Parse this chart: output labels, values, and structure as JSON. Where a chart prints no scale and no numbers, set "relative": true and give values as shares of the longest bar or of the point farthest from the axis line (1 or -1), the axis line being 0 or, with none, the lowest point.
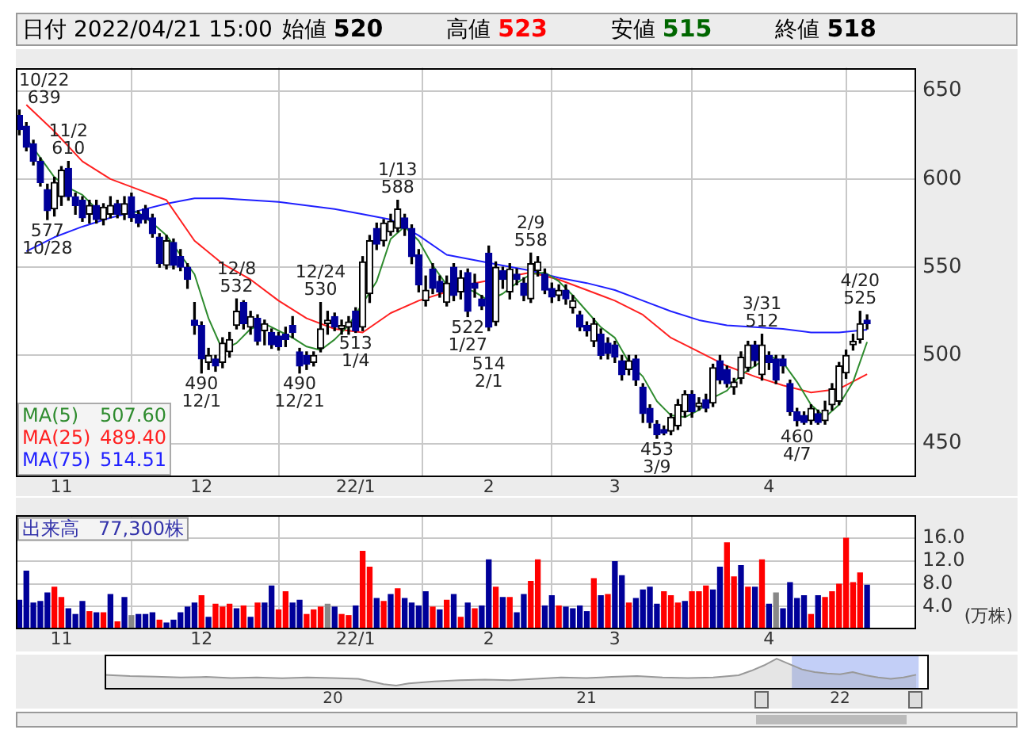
{
  "chart_data": [
    {
      "type": "candlestick",
      "title": "日付 2022/04/21 15:00",
      "categories": [
        null,
        null,
        null,
        null,
        null,
        null,
        "11",
        null,
        null,
        null,
        null,
        null,
        null,
        null,
        null,
        null,
        null,
        null,
        null,
        null,
        null,
        null,
        null,
        null,
        null,
        null,
        "12",
        null,
        null,
        null,
        null,
        null,
        null,
        null,
        null,
        null,
        null,
        null,
        null,
        null,
        null,
        null,
        null,
        null,
        null,
        null,
        null,
        null,
        "22/1",
        null,
        null,
        null,
        null,
        null,
        null,
        null,
        null,
        null,
        null,
        null,
        null,
        null,
        null,
        null,
        null,
        null,
        null,
        "2",
        null,
        null,
        null,
        null,
        null,
        null,
        null,
        null,
        null,
        null,
        null,
        null,
        null,
        null,
        null,
        null,
        null,
        "3",
        null,
        null,
        null,
        null,
        null,
        null,
        null,
        null,
        null,
        null,
        null,
        null,
        null,
        null,
        null,
        null,
        null,
        null,
        null,
        null,
        null,
        "4",
        null,
        null,
        null,
        null,
        null,
        null,
        null,
        null,
        null,
        null,
        null,
        null,
        null,
        null
      ],
      "ohlc": [
        [
          636,
          639,
          625,
          628
        ],
        [
          630,
          632,
          616,
          618
        ],
        [
          620,
          622,
          608,
          610
        ],
        [
          610,
          612,
          596,
          598
        ],
        [
          594,
          597,
          577,
          582
        ],
        [
          583,
          601,
          579,
          598
        ],
        [
          590,
          607,
          585,
          605
        ],
        [
          606,
          610,
          588,
          590
        ],
        [
          590,
          592,
          580,
          585
        ],
        [
          588,
          590,
          576,
          578
        ],
        [
          580,
          588,
          575,
          585
        ],
        [
          585,
          588,
          575,
          577
        ],
        [
          577,
          586,
          574,
          584
        ],
        [
          580,
          590,
          578,
          585
        ],
        [
          586,
          588,
          578,
          580
        ],
        [
          580,
          590,
          577,
          586
        ],
        [
          590,
          592,
          576,
          578
        ],
        [
          580,
          582,
          573,
          575
        ],
        [
          583,
          585,
          575,
          577
        ],
        [
          578,
          580,
          567,
          569
        ],
        [
          567,
          569,
          550,
          552
        ],
        [
          551,
          568,
          549,
          565
        ],
        [
          564,
          566,
          549,
          551
        ],
        [
          556,
          560,
          548,
          550
        ],
        [
          550,
          552,
          538,
          543
        ],
        [
          520,
          530,
          512,
          517
        ],
        [
          517,
          519,
          490,
          498
        ],
        [
          496,
          504,
          492,
          500
        ],
        [
          498,
          500,
          491,
          494
        ],
        [
          496,
          510,
          493,
          507
        ],
        [
          502,
          513,
          499,
          509
        ],
        [
          517,
          532,
          515,
          525
        ],
        [
          530,
          531,
          515,
          518
        ],
        [
          516,
          525,
          512,
          522
        ],
        [
          521,
          523,
          506,
          508
        ],
        [
          514,
          520,
          506,
          518
        ],
        [
          513,
          515,
          504,
          506
        ],
        [
          511,
          513,
          503,
          505
        ],
        [
          512,
          516,
          505,
          509
        ],
        [
          517,
          522,
          510,
          513
        ],
        [
          502,
          504,
          490,
          494
        ],
        [
          500,
          502,
          492,
          495
        ],
        [
          496,
          502,
          494,
          500
        ],
        [
          504,
          530,
          502,
          515
        ],
        [
          518,
          525,
          512,
          520
        ],
        [
          522,
          524,
          514,
          516
        ],
        [
          515,
          520,
          512,
          517
        ],
        [
          516,
          522,
          512,
          519
        ],
        [
          525,
          527,
          513,
          514
        ],
        [
          516,
          556,
          514,
          553
        ],
        [
          535,
          568,
          530,
          565
        ],
        [
          572,
          575,
          560,
          563
        ],
        [
          565,
          577,
          562,
          575
        ],
        [
          570,
          580,
          568,
          576
        ],
        [
          572,
          588,
          570,
          583
        ],
        [
          578,
          580,
          568,
          572
        ],
        [
          572,
          574,
          552,
          556
        ],
        [
          557,
          560,
          536,
          540
        ],
        [
          531,
          545,
          528,
          537
        ],
        [
          549,
          552,
          535,
          538
        ],
        [
          542,
          545,
          533,
          536
        ],
        [
          530,
          545,
          528,
          541
        ],
        [
          550,
          552,
          531,
          534
        ],
        [
          536,
          548,
          532,
          544
        ],
        [
          547,
          549,
          522,
          525
        ],
        [
          541,
          546,
          533,
          538
        ],
        [
          532,
          534,
          526,
          528
        ],
        [
          558,
          562,
          514,
          516
        ],
        [
          519,
          553,
          517,
          550
        ],
        [
          548,
          550,
          538,
          543
        ],
        [
          536,
          552,
          532,
          549
        ],
        [
          546,
          549,
          540,
          543
        ],
        [
          541,
          544,
          531,
          534
        ],
        [
          532,
          558,
          530,
          552
        ],
        [
          548,
          556,
          545,
          553
        ],
        [
          546,
          549,
          535,
          537
        ],
        [
          538,
          541,
          530,
          533
        ],
        [
          534,
          540,
          531,
          537
        ],
        [
          537,
          540,
          529,
          532
        ],
        [
          527,
          534,
          524,
          531
        ],
        [
          523,
          525,
          514,
          516
        ],
        [
          517,
          519,
          511,
          514
        ],
        [
          508,
          521,
          505,
          518
        ],
        [
          512,
          515,
          498,
          500
        ],
        [
          507,
          510,
          498,
          501
        ],
        [
          506,
          508,
          496,
          499
        ],
        [
          497,
          500,
          486,
          489
        ],
        [
          492,
          500,
          489,
          497
        ],
        [
          498,
          500,
          483,
          486
        ],
        [
          482,
          484,
          462,
          467
        ],
        [
          470,
          472,
          459,
          462
        ],
        [
          461,
          463,
          453,
          455
        ],
        [
          458,
          460,
          455,
          456
        ],
        [
          457,
          467,
          455,
          465
        ],
        [
          460,
          475,
          458,
          472
        ],
        [
          468,
          480,
          465,
          478
        ],
        [
          478,
          480,
          465,
          468
        ],
        [
          471,
          476,
          469,
          473
        ],
        [
          475,
          478,
          468,
          470
        ],
        [
          473,
          495,
          471,
          493
        ],
        [
          497,
          500,
          484,
          486
        ],
        [
          492,
          494,
          482,
          484
        ],
        [
          482,
          487,
          478,
          485
        ],
        [
          487,
          502,
          484,
          499
        ],
        [
          493,
          508,
          491,
          506
        ],
        [
          506,
          508,
          494,
          497
        ],
        [
          489,
          512,
          486,
          506
        ],
        [
          500,
          502,
          492,
          496
        ],
        [
          498,
          500,
          484,
          486
        ],
        [
          498,
          500,
          490,
          494
        ],
        [
          484,
          486,
          466,
          468
        ],
        [
          468,
          470,
          460,
          463
        ],
        [
          466,
          468,
          461,
          462
        ],
        [
          463,
          472,
          461,
          470
        ],
        [
          467,
          469,
          461,
          462
        ],
        [
          463,
          474,
          461,
          469
        ],
        [
          472,
          484,
          469,
          481
        ],
        [
          474,
          496,
          472,
          494
        ],
        [
          490,
          503,
          487,
          500
        ],
        [
          506,
          512,
          503,
          508
        ],
        [
          509,
          525,
          507,
          518
        ],
        [
          520,
          523,
          515,
          518
        ]
      ],
      "series": [
        {
          "name": "MA(5)",
          "type": "line",
          "color": "#2e8b2e",
          "values": [
            null,
            623,
            null,
            612,
            null,
            601,
            null,
            595,
            null,
            591,
            null,
            583,
            null,
            582,
            null,
            582,
            null,
            581,
            null,
            575,
            null,
            568,
            null,
            557,
            null,
            546,
            null,
            521,
            null,
            503,
            null,
            507,
            null,
            515,
            null,
            518,
            null,
            514,
            null,
            510,
            null,
            505,
            null,
            503,
            null,
            509,
            null,
            517,
            null,
            null,
            null,
            542,
            null,
            566,
            null,
            573,
            null,
            565,
            null,
            551,
            null,
            540,
            null,
            539,
            null,
            536,
            null,
            531,
            null,
            535,
            null,
            541,
            null,
            546,
            null,
            547,
            null,
            542,
            null,
            534,
            null,
            525,
            null,
            516,
            null,
            510,
            null,
            496,
            null,
            488,
            null,
            474,
            null,
            466,
            null,
            465,
            null,
            469,
            null,
            476,
            null,
            480,
            null,
            489,
            null,
            494,
            null,
            500,
            null,
            496,
            null,
            485,
            null,
            472,
            null,
            465,
            null,
            472,
            null,
            485,
            null,
            507.6
          ]
        },
        {
          "name": "MA(25)",
          "type": "line",
          "color": "#ff2020",
          "values": [
            null,
            642,
            null,
            null,
            null,
            627,
            null,
            null,
            null,
            610,
            null,
            null,
            null,
            600,
            null,
            null,
            null,
            594,
            null,
            null,
            null,
            588,
            null,
            null,
            null,
            565,
            null,
            null,
            null,
            552,
            null,
            null,
            null,
            543,
            null,
            null,
            null,
            531,
            null,
            null,
            null,
            521,
            null,
            null,
            null,
            515,
            null,
            null,
            null,
            513,
            null,
            null,
            null,
            524,
            null,
            null,
            null,
            531,
            null,
            null,
            null,
            536,
            null,
            null,
            null,
            541,
            null,
            null,
            null,
            null,
            null,
            null,
            null,
            547,
            null,
            null,
            null,
            543,
            null,
            null,
            null,
            537,
            null,
            null,
            null,
            531,
            null,
            null,
            null,
            523,
            null,
            null,
            null,
            510,
            null,
            null,
            null,
            502,
            null,
            null,
            null,
            494,
            null,
            null,
            null,
            488,
            null,
            null,
            null,
            483,
            null,
            null,
            null,
            479,
            null,
            null,
            null,
            481,
            null,
            null,
            null,
            489.4
          ]
        },
        {
          "name": "MA(75)",
          "type": "line",
          "color": "#2020ff",
          "values": [
            null,
            559,
            null,
            null,
            null,
            567,
            null,
            null,
            null,
            573,
            null,
            null,
            null,
            578,
            null,
            null,
            null,
            582,
            null,
            null,
            null,
            586,
            null,
            null,
            null,
            589,
            null,
            null,
            null,
            589,
            null,
            null,
            null,
            588,
            null,
            null,
            null,
            587,
            null,
            null,
            null,
            585,
            null,
            null,
            null,
            583,
            null,
            null,
            null,
            580,
            null,
            null,
            null,
            577,
            null,
            null,
            null,
            568,
            null,
            null,
            null,
            557,
            null,
            null,
            null,
            554,
            null,
            null,
            null,
            551,
            null,
            null,
            null,
            548,
            null,
            null,
            null,
            544,
            null,
            null,
            null,
            541,
            null,
            null,
            null,
            537,
            null,
            null,
            null,
            531,
            null,
            null,
            null,
            525,
            null,
            null,
            null,
            520,
            null,
            null,
            null,
            517,
            null,
            null,
            null,
            516,
            null,
            null,
            null,
            515,
            null,
            null,
            null,
            513,
            null,
            null,
            null,
            513,
            null,
            null,
            null,
            514.51
          ]
        }
      ],
      "ylim": [
        431,
        663
      ],
      "yticks": [
        450,
        500,
        550,
        600,
        650
      ],
      "grid": true,
      "legend": "bottom left",
      "annotations": [
        "始値 520",
        "高値 523",
        "安値 515",
        "終値 518",
        "507.60",
        "489.40",
        "514.51",
        {
          "text": "10/22\n639",
          "y": 639
        },
        {
          "text": "577\n10/28",
          "y": 577
        },
        {
          "text": "11/2\n610",
          "y": 610
        },
        {
          "text": "490\n12/1",
          "y": 490
        },
        {
          "text": "12/8\n532",
          "y": 532
        },
        {
          "text": "490\n12/21",
          "y": 490
        },
        {
          "text": "12/24\n530",
          "y": 530
        },
        {
          "text": "513\n1/4",
          "y": 513
        },
        {
          "text": "1/13\n588",
          "y": 588
        },
        {
          "text": "522\n1/27",
          "y": 522
        },
        {
          "text": "514\n2/1",
          "y": 514
        },
        {
          "text": "2/9\n558",
          "y": 558
        },
        {
          "text": "453\n3/9",
          "y": 453
        },
        {
          "text": "3/31\n512",
          "y": 512
        },
        {
          "text": "460\n4/7",
          "y": 460
        },
        {
          "text": "4/20\n525",
          "y": 525
        }
      ]
    },
    {
      "type": "bar",
      "title": "出来高　77,300株",
      "ylabel": "(万株)",
      "categories": [
        null,
        null,
        null,
        null,
        null,
        null,
        "11",
        null,
        null,
        null,
        null,
        null,
        null,
        null,
        null,
        null,
        null,
        null,
        null,
        null,
        null,
        null,
        null,
        null,
        null,
        null,
        "12",
        null,
        null,
        null,
        null,
        null,
        null,
        null,
        null,
        null,
        null,
        null,
        null,
        null,
        null,
        null,
        null,
        null,
        null,
        null,
        null,
        null,
        "22/1",
        null,
        null,
        null,
        null,
        null,
        null,
        null,
        null,
        null,
        null,
        null,
        null,
        null,
        null,
        null,
        null,
        null,
        null,
        "2",
        null,
        null,
        null,
        null,
        null,
        null,
        null,
        null,
        null,
        null,
        null,
        null,
        null,
        null,
        null,
        null,
        null,
        "3",
        null,
        null,
        null,
        null,
        null,
        null,
        null,
        null,
        null,
        null,
        null,
        null,
        null,
        null,
        null,
        null,
        null,
        null,
        null,
        null,
        null,
        "4",
        null,
        null,
        null,
        null,
        null,
        null,
        null,
        null,
        null,
        null,
        null,
        null,
        null,
        null
      ],
      "values": [
        5.1,
        10.2,
        4.6,
        4.9,
        6.4,
        7.4,
        5.6,
        3.6,
        2.6,
        4.9,
        3.1,
        2.9,
        2.9,
        6.1,
        1.3,
        5.6,
        2.4,
        2.6,
        2.6,
        2.9,
        1.6,
        1.1,
        1.6,
        2.9,
        3.9,
        4.6,
        5.9,
        2.1,
        4.4,
        3.9,
        4.4,
        3.6,
        4.1,
        2.1,
        4.6,
        4.6,
        7.6,
        3.4,
        6.6,
        4.6,
        5.1,
        2.6,
        3.4,
        3.9,
        4.4,
        3.9,
        2.6,
        2.4,
        4.1,
        13.7,
        10.9,
        5.4,
        4.9,
        6.1,
        7.1,
        5.4,
        4.6,
        4.1,
        6.6,
        3.9,
        3.4,
        5.1,
        6.1,
        2.1,
        4.6,
        3.6,
        4.1,
        12.2,
        7.4,
        5.6,
        5.6,
        2.9,
        6.1,
        8.4,
        12.2,
        4.1,
        5.9,
        4.1,
        3.9,
        3.6,
        4.1,
        3.1,
        8.9,
        5.9,
        6.1,
        11.9,
        9.4,
        4.6,
        5.4,
        6.9,
        7.4,
        4.4,
        6.6,
        5.9,
        4.6,
        4.9,
        6.6,
        6.6,
        7.6,
        6.9,
        10.9,
        15.2,
        9.2,
        11.2,
        7.4,
        7.4,
        12.2,
        4.4,
        6.4,
        3.6,
        8.2,
        5.4,
        5.9,
        2.6,
        5.9,
        5.6,
        6.6,
        7.9,
        16.0,
        8.2,
        9.9,
        7.73
      ],
      "colors": [
        "#000099",
        "#000099",
        "#000099",
        "#000099",
        "#000099",
        "#ff0000",
        "#ff0000",
        "#000099",
        "#000099",
        "#000099",
        "#ff0000",
        "#000099",
        "#ff0000",
        "#000099",
        "#ff0000",
        "#000099",
        "#888888",
        "#000099",
        "#000099",
        "#000099",
        "#ff0000",
        "#000099",
        "#000099",
        "#000099",
        "#000099",
        "#000099",
        "#ff0000",
        "#000099",
        "#ff0000",
        "#ff0000",
        "#ff0000",
        "#000099",
        "#ff0000",
        "#000099",
        "#ff0000",
        "#000099",
        "#000099",
        "#ff0000",
        "#ff0000",
        "#000099",
        "#000099",
        "#ff0000",
        "#ff0000",
        "#ff0000",
        "#888888",
        "#000099",
        "#ff0000",
        "#ff0000",
        "#000099",
        "#ff0000",
        "#ff0000",
        "#000099",
        "#ff0000",
        "#000099",
        "#ff0000",
        "#000099",
        "#000099",
        "#000099",
        "#000099",
        "#ff0000",
        "#000099",
        "#ff0000",
        "#000099",
        "#ff0000",
        "#000099",
        "#ff0000",
        "#000099",
        "#000099",
        "#ff0000",
        "#000099",
        "#ff0000",
        "#000099",
        "#000099",
        "#ff0000",
        "#ff0000",
        "#000099",
        "#000099",
        "#ff0000",
        "#000099",
        "#000099",
        "#000099",
        "#000099",
        "#ff0000",
        "#000099",
        "#ff0000",
        "#000099",
        "#000099",
        "#ff0000",
        "#000099",
        "#000099",
        "#000099",
        "#000099",
        "#ff0000",
        "#ff0000",
        "#ff0000",
        "#000099",
        "#ff0000",
        "#ff0000",
        "#ff0000",
        "#000099",
        "#000099",
        "#ff0000",
        "#ff0000",
        "#000099",
        "#ff0000",
        "#000099",
        "#ff0000",
        "#000099",
        "#888888",
        "#000099",
        "#000099",
        "#000099",
        "#000099",
        "#ff0000",
        "#000099",
        "#ff0000",
        "#ff0000",
        "#ff0000",
        "#ff0000",
        "#ff0000",
        "#ff0000",
        "#000099"
      ],
      "ylim": [
        0,
        20
      ],
      "yticks": [
        {
          "value": 4,
          "label": "4.0"
        },
        {
          "value": 8,
          "label": "8.0"
        },
        {
          "value": 12,
          "label": "12.0"
        },
        {
          "value": 16,
          "label": "16.0"
        }
      ],
      "grid": true
    },
    {
      "type": "area",
      "relative": true,
      "x": [
        2019.1,
        2019.2,
        2019.3,
        2019.4,
        2019.5,
        2019.6,
        2019.7,
        2019.8,
        2019.9,
        2020.0,
        2020.1,
        2020.15,
        2020.2,
        2020.25,
        2020.3,
        2020.4,
        2020.5,
        2020.6,
        2020.7,
        2020.8,
        2020.9,
        2021.0,
        2021.1,
        2021.2,
        2021.3,
        2021.4,
        2021.5,
        2021.6,
        2021.65,
        2021.7,
        2021.75,
        2021.8,
        2021.85,
        2021.9,
        2021.95,
        2022.0,
        2022.05,
        2022.1,
        2022.15,
        2022.2,
        2022.25,
        2022.3
      ],
      "values": [
        0.4,
        0.35,
        0.33,
        0.3,
        0.32,
        0.28,
        0.3,
        0.27,
        0.3,
        0.28,
        0.25,
        0.15,
        0.05,
        0,
        0.08,
        0.15,
        0.2,
        0.22,
        0.2,
        0.25,
        0.3,
        0.28,
        0.32,
        0.35,
        0.3,
        0.28,
        0.3,
        0.38,
        0.55,
        0.75,
        1,
        0.8,
        0.6,
        0.5,
        0.45,
        0.42,
        0.5,
        0.38,
        0.3,
        0.25,
        0.3,
        0.4
      ],
      "color": "#999999",
      "xlim": [
        2019.1,
        2022.35
      ],
      "xticks": [
        {
          "value": 2020,
          "label": "20"
        },
        {
          "value": 2021,
          "label": "21"
        },
        {
          "value": 2022,
          "label": "22"
        }
      ],
      "bands": [
        {
          "axis": "x",
          "from": 2021.81,
          "to": 2022.31,
          "color": "#b4c3f5"
        }
      ]
    }
  ]
}
